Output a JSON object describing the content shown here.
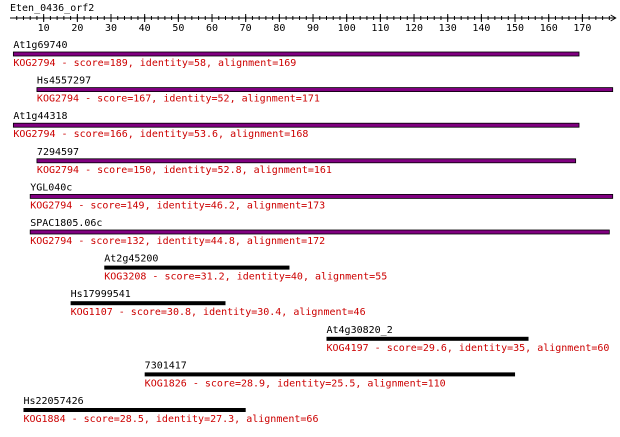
{
  "query": {
    "name": "Eten_0436_orf2",
    "axis_ticks": [
      10,
      20,
      30,
      40,
      50,
      60,
      70,
      80,
      90,
      100,
      110,
      120,
      130,
      140,
      150,
      160,
      170
    ],
    "axis_range": [
      0,
      179
    ]
  },
  "colors": {
    "purple_bar": "#800080",
    "black_bar": "#000000",
    "axis": "#000000",
    "hit_text": "#cc0000",
    "label_text": "#000000"
  },
  "hits": [
    {
      "name": "At1g69740",
      "kog": "KOG2794",
      "description": "KOG2794 - score=189, identity=58, alignment=169",
      "start": 1,
      "end": 169,
      "color": "purple"
    },
    {
      "name": "Hs4557297",
      "kog": "KOG2794",
      "description": "KOG2794 - score=167, identity=52, alignment=171",
      "start": 8,
      "end": 179,
      "color": "purple"
    },
    {
      "name": "At1g44318",
      "kog": "KOG2794",
      "description": "KOG2794 - score=166, identity=53.6, alignment=168",
      "start": 1,
      "end": 169,
      "color": "purple"
    },
    {
      "name": "7294597",
      "kog": "KOG2794",
      "description": "KOG2794 - score=150, identity=52.8, alignment=161",
      "start": 8,
      "end": 168,
      "color": "purple"
    },
    {
      "name": "YGL040c",
      "kog": "KOG2794",
      "description": "KOG2794 - score=149, identity=46.2, alignment=173",
      "start": 6,
      "end": 179,
      "color": "purple"
    },
    {
      "name": "SPAC1805.06c",
      "kog": "KOG2794",
      "description": "KOG2794 - score=132, identity=44.8, alignment=172",
      "start": 6,
      "end": 178,
      "color": "purple"
    },
    {
      "name": "At2g45200",
      "kog": "KOG3208",
      "description": "KOG3208 - score=31.2, identity=40, alignment=55",
      "start": 28,
      "end": 83,
      "color": "black"
    },
    {
      "name": "Hs17999541",
      "kog": "KOG1107",
      "description": "KOG1107 - score=30.8, identity=30.4, alignment=46",
      "start": 18,
      "end": 64,
      "color": "black"
    },
    {
      "name": "At4g30820_2",
      "kog": "KOG4197",
      "description": "KOG4197 - score=29.6, identity=35, alignment=60",
      "start": 94,
      "end": 154,
      "color": "black"
    },
    {
      "name": "7301417",
      "kog": "KOG1826",
      "description": "KOG1826 - score=28.9, identity=25.5, alignment=110",
      "start": 40,
      "end": 150,
      "color": "black"
    },
    {
      "name": "Hs22057426",
      "kog": "KOG1884",
      "description": "KOG1884 - score=28.5, identity=27.3, alignment=66",
      "start": 4,
      "end": 70,
      "color": "black"
    }
  ]
}
